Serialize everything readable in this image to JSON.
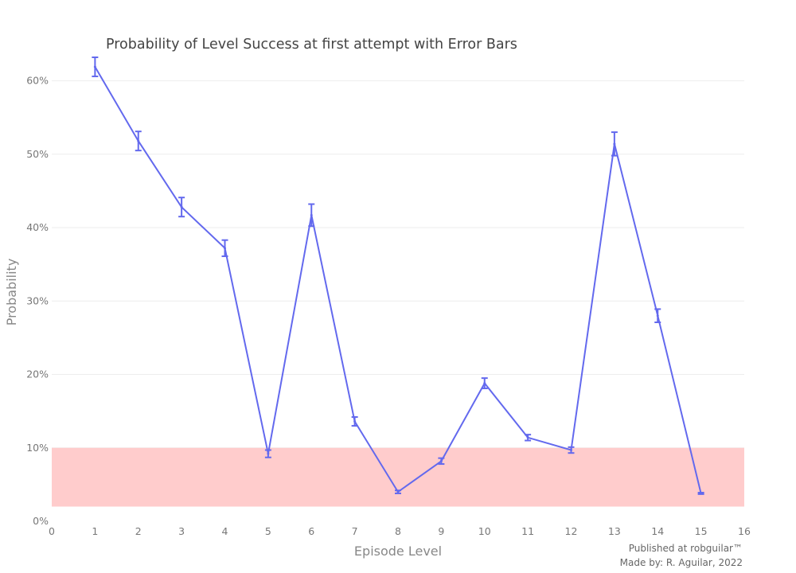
{
  "chart_data": {
    "type": "line",
    "title": "Probability of Level Success at first attempt with Error Bars",
    "xlabel": "Episode Level",
    "ylabel": "Probability",
    "xlim": [
      0,
      16
    ],
    "ylim": [
      0,
      0.645
    ],
    "x_ticks": [
      "0",
      "1",
      "2",
      "3",
      "4",
      "5",
      "6",
      "7",
      "8",
      "9",
      "10",
      "11",
      "12",
      "13",
      "14",
      "15",
      "16"
    ],
    "y_ticks": [
      "0%",
      "10%",
      "20%",
      "30%",
      "40%",
      "50%",
      "60%"
    ],
    "grid": true,
    "highlight_band": {
      "y0": 0.02,
      "y1": 0.1,
      "color": "#ffcccc"
    },
    "series": [
      {
        "color": "#6369ee",
        "x": [
          1,
          2,
          3,
          4,
          5,
          6,
          7,
          8,
          9,
          10,
          11,
          12,
          13,
          14,
          15
        ],
        "y": [
          0.619,
          0.518,
          0.428,
          0.372,
          0.092,
          0.417,
          0.136,
          0.04,
          0.082,
          0.188,
          0.114,
          0.097,
          0.514,
          0.28,
          0.038
        ],
        "err": [
          0.013,
          0.013,
          0.013,
          0.011,
          0.005,
          0.015,
          0.006,
          0.002,
          0.004,
          0.007,
          0.004,
          0.004,
          0.016,
          0.009,
          0.001
        ]
      }
    ]
  },
  "credits": {
    "line1": "Published at robguilar™",
    "line2": "Made by:  R. Aguilar, 2022"
  }
}
